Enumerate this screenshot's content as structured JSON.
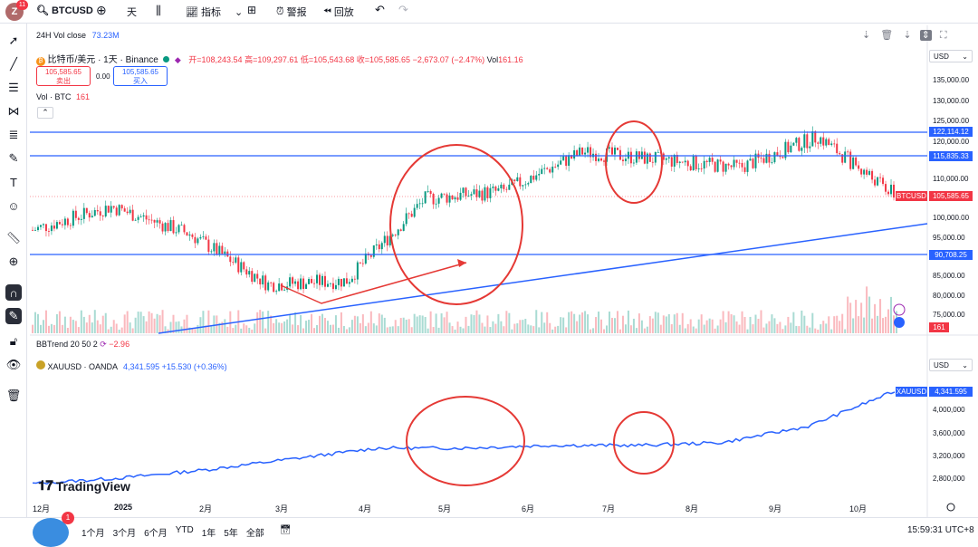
{
  "topbar": {
    "avatar_letter": "Z",
    "avatar_badge": "11",
    "symbol": "BTCUSD",
    "interval": "天",
    "indicators": "指标",
    "alert": "警报",
    "replay": "回放"
  },
  "legend": {
    "vol_close_label": "24H Vol close",
    "vol_close_value": "73.23M",
    "title": "比特币/美元 · 1天 · Binance",
    "open": "开=108,243.54",
    "high": "高=109,297.61",
    "low": "低=105,543.68",
    "close": "收=105,585.65",
    "change": "−2,673.07 (−2.47%)",
    "vol_label": "Vol",
    "vol_value": "161.16",
    "vol_btc_label": "Vol · BTC",
    "vol_btc_value": "161",
    "sell_price": "105,585.65",
    "sell_label": "卖出",
    "spread": "0.00",
    "buy_price": "105,585.65",
    "buy_label": "买入",
    "bbtrend_label": "BBTrend 20 50 2",
    "bbtrend_value": "−2.96",
    "xau_title": "XAUUSD · OANDA",
    "xau_price": "4,341.595",
    "xau_change": "+15.530 (+0.36%)"
  },
  "axis": {
    "currency": "USD",
    "btc_ticks": [
      "135,000.00",
      "130,000.00",
      "125,000.00",
      "120,000.00",
      "110,000.00",
      "100,000.00",
      "95,000.00",
      "85,000.00",
      "80,000.00",
      "75,000.00"
    ],
    "btc_tags": {
      "l1": "122,114.12",
      "l2": "115,835.33",
      "btc_symbol": "BTCUSD",
      "btc_price": "105,585.65",
      "l3": "90,708.25",
      "vol": "161"
    },
    "xau_ticks": [
      "4,000,000",
      "3,600,000",
      "3,200,000",
      "2,800,000"
    ],
    "xau_tag_symbol": "XAUUSD",
    "xau_tag_price": "4,341.595"
  },
  "xaxis": [
    "12月",
    "2025",
    "2月",
    "3月",
    "4月",
    "5月",
    "6月",
    "7月",
    "8月",
    "9月",
    "10月"
  ],
  "bottombar": {
    "badge": "1",
    "ranges": [
      "1个月",
      "3个月",
      "6个月",
      "YTD",
      "1年",
      "5年",
      "全部"
    ],
    "time": "15:59:31 UTC+8"
  },
  "branding": "TradingView",
  "colors": {
    "up": "#089981",
    "down": "#f23645",
    "line": "#2962ff",
    "circle": "#e53935"
  },
  "chart_data": {
    "type": "candlestick",
    "symbol": "BTCUSD",
    "horizontal_levels": [
      122114.12,
      115835.33,
      90708.25
    ],
    "last_price": 105585.65,
    "approx_close_path": [
      {
        "x": "2024-12",
        "y": 97000
      },
      {
        "x": "2025-01",
        "y": 103000
      },
      {
        "x": "2025-02",
        "y": 96000
      },
      {
        "x": "2025-03",
        "y": 83000
      },
      {
        "x": "2025-04",
        "y": 84000
      },
      {
        "x": "2025-05",
        "y": 105000
      },
      {
        "x": "2025-06",
        "y": 107000
      },
      {
        "x": "2025-07",
        "y": 117000
      },
      {
        "x": "2025-08",
        "y": 115000
      },
      {
        "x": "2025-09",
        "y": 113000
      },
      {
        "x": "2025-10",
        "y": 121000
      },
      {
        "x": "2025-10-20",
        "y": 105585.65
      }
    ],
    "xau_approx_path": [
      {
        "x": "2024-12",
        "y": 2650
      },
      {
        "x": "2025-01",
        "y": 2750
      },
      {
        "x": "2025-02",
        "y": 2900
      },
      {
        "x": "2025-03",
        "y": 3100
      },
      {
        "x": "2025-04",
        "y": 3300
      },
      {
        "x": "2025-05",
        "y": 3300
      },
      {
        "x": "2025-06",
        "y": 3350
      },
      {
        "x": "2025-07",
        "y": 3350
      },
      {
        "x": "2025-08",
        "y": 3400
      },
      {
        "x": "2025-09",
        "y": 3700
      },
      {
        "x": "2025-10",
        "y": 4341.595
      }
    ]
  }
}
